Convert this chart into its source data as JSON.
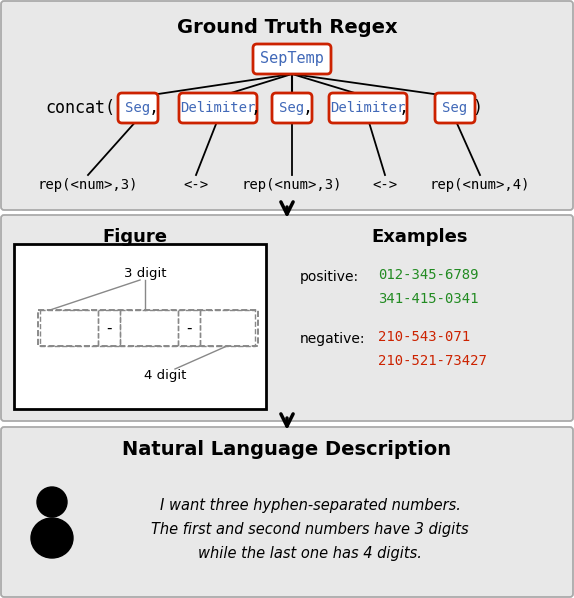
{
  "title_regex": "Ground Truth Regex",
  "title_nl": "Natural Language Description",
  "nl_text": [
    "I want three hyphen-separated numbers.",
    "The first and second numbers have 3 digits",
    "while the last one has 4 digits."
  ],
  "septemp_label": "SepTemp",
  "nodes": [
    "Seg",
    "Delimiter",
    "Seg",
    "Delimiter",
    "Seg"
  ],
  "leaves": [
    "rep(<num>,3)",
    "<->",
    "rep(<num>,3)",
    "<->",
    "rep(<num>,4)"
  ],
  "positive_examples": [
    "012-345-6789",
    "341-415-0341"
  ],
  "negative_examples": [
    "210-543-071",
    "210-521-73427"
  ],
  "color_blue": "#4169b8",
  "color_red": "#cc2200",
  "color_green": "#228B22",
  "color_border_red": "#cc2200",
  "bg_color": "#e8e8e8",
  "panel_edge": "#aaaaaa",
  "fig_width": 5.74,
  "fig_height": 5.98
}
